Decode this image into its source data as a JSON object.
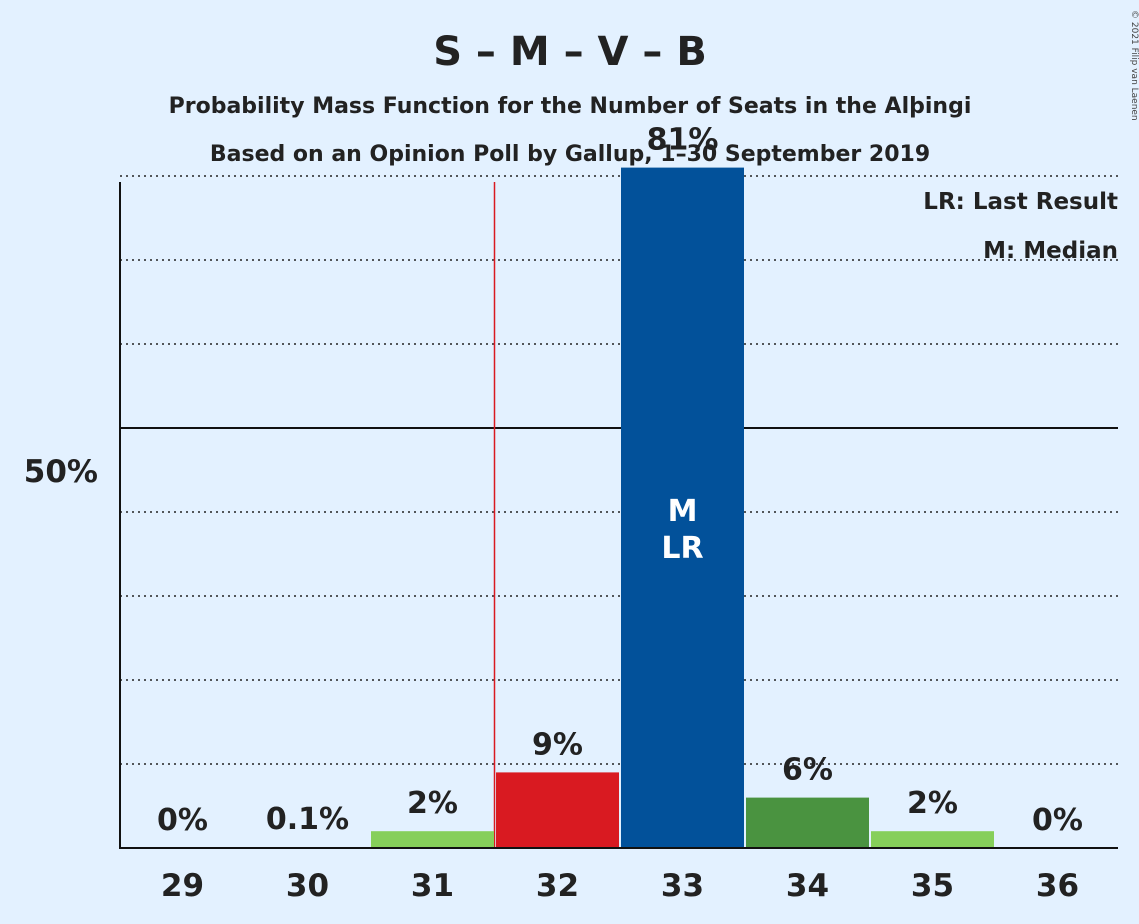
{
  "title": "S – M – V – B",
  "subtitle1": "Probability Mass Function for the Number of Seats in the Alþingi",
  "subtitle2": "Based on an Opinion Poll by Gallup, 1–30 September 2019",
  "legend": {
    "last_result": "LR: Last Result",
    "median": "M: Median"
  },
  "copyright": "© 2021 Filip van Laenen",
  "chart_data": {
    "type": "bar",
    "categories": [
      "29",
      "30",
      "31",
      "32",
      "33",
      "34",
      "35",
      "36"
    ],
    "values": [
      0,
      0.1,
      2,
      9,
      81,
      6,
      2,
      0
    ],
    "value_labels": [
      "0%",
      "0.1%",
      "2%",
      "9%",
      "81%",
      "6%",
      "2%",
      "0%"
    ],
    "bar_colors": [
      "#86cf5a",
      "#86cf5a",
      "#86cf5a",
      "#d91a21",
      "#02519a",
      "#4a9340",
      "#86cf5a",
      "#86cf5a"
    ],
    "ylim": [
      0,
      90
    ],
    "y_tick_label": "50%",
    "y_tick_value": 50,
    "gridlines": [
      10,
      20,
      30,
      40,
      60,
      70,
      80
    ],
    "last_result_seat": "33",
    "median_seat": "33",
    "majority_line_after": "31",
    "bar_annotation": [
      "M",
      "LR"
    ],
    "majority_line_color": "#d91a21",
    "grid": true,
    "legend_position": "top-right"
  }
}
